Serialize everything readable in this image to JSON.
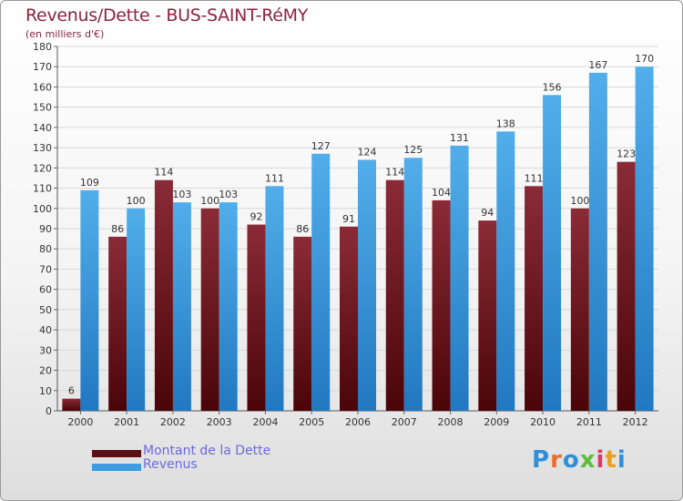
{
  "header": {
    "title": "Revenus/Dette - BUS-SAINT-RéMY",
    "subtitle": "(en milliers d'€)"
  },
  "chart_data": {
    "type": "bar",
    "categories": [
      "2000",
      "2001",
      "2002",
      "2003",
      "2004",
      "2005",
      "2006",
      "2007",
      "2008",
      "2009",
      "2010",
      "2011",
      "2012"
    ],
    "series": [
      {
        "name": "Montant de la Dette",
        "color": "#7a1f27",
        "values": [
          6,
          86,
          114,
          100,
          92,
          86,
          91,
          114,
          104,
          94,
          111,
          100,
          123
        ]
      },
      {
        "name": "Revenus",
        "color": "#3d9de0",
        "values": [
          109,
          100,
          103,
          103,
          111,
          127,
          124,
          125,
          131,
          138,
          156,
          167,
          170
        ]
      }
    ],
    "ylim": [
      0,
      180
    ],
    "ytick_step": 10,
    "grid": true,
    "legend_position": "bottom-left"
  },
  "legend": {
    "items": [
      {
        "label": "Montant de la Dette",
        "color": "#5a0f14"
      },
      {
        "label": "Revenus",
        "color": "#3d9de0"
      }
    ]
  },
  "brand": {
    "text": "Proxiti",
    "letter_colors": [
      "#2f8fd8",
      "#e8702a",
      "#2f8fd8",
      "#5bbf3a",
      "#d83a6a",
      "#e8a020",
      "#2f8fd8"
    ]
  }
}
